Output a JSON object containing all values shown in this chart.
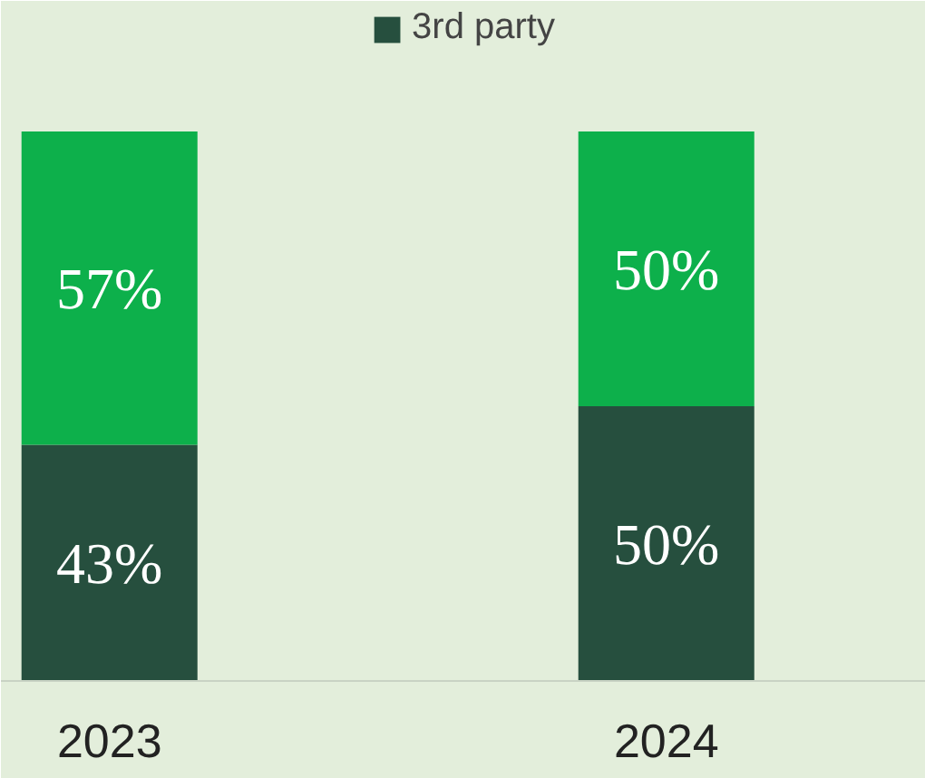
{
  "chart_data": {
    "type": "bar",
    "stacked": true,
    "categories": [
      "2023",
      "2024"
    ],
    "legend": "top",
    "series": [
      {
        "name": "3rd party",
        "color": "#264f3e",
        "values": [
          43,
          50
        ],
        "value_labels": [
          "43%",
          "50%"
        ]
      },
      {
        "color": "#0db04b",
        "values": [
          57,
          50
        ],
        "value_labels": [
          "57%",
          "50%"
        ]
      }
    ]
  }
}
